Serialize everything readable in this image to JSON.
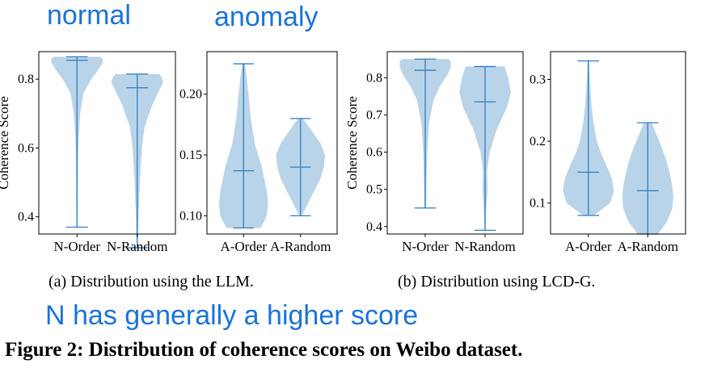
{
  "annotations": {
    "normal": "normal",
    "anomaly": "anomaly",
    "note": "N has generally a higher score"
  },
  "captions": {
    "a": "(a)  Distribution using the LLM.",
    "b": "(b)  Distribution using LCD-G."
  },
  "figure_caption": "Figure 2: Distribution of coherence scores on Weibo dataset.",
  "colors": {
    "violin_fill": "#b9d3e8",
    "violin_line": "#2f7fc1",
    "annotation": "#1a73d6"
  },
  "chart_data": [
    {
      "type": "violin",
      "ylabel": "Coherence Score",
      "ylim": [
        0.35,
        0.88
      ],
      "yticks": [
        0.4,
        0.6,
        0.8
      ],
      "tick_labels": [
        "0.4",
        "0.6",
        "0.8"
      ],
      "categories": [
        "N-Order",
        "N-Random"
      ],
      "series": [
        {
          "min": 0.37,
          "median": 0.855,
          "max": 0.865,
          "density": [
            [
              0.37,
              0.02
            ],
            [
              0.45,
              0.03
            ],
            [
              0.55,
              0.04
            ],
            [
              0.62,
              0.06
            ],
            [
              0.7,
              0.12
            ],
            [
              0.76,
              0.25
            ],
            [
              0.8,
              0.55
            ],
            [
              0.83,
              0.85
            ],
            [
              0.85,
              1.0
            ],
            [
              0.86,
              0.98
            ],
            [
              0.865,
              0.9
            ]
          ]
        },
        {
          "min": 0.31,
          "median": 0.775,
          "max": 0.815,
          "density": [
            [
              0.31,
              0.02
            ],
            [
              0.4,
              0.05
            ],
            [
              0.5,
              0.1
            ],
            [
              0.6,
              0.18
            ],
            [
              0.66,
              0.28
            ],
            [
              0.72,
              0.55
            ],
            [
              0.76,
              0.8
            ],
            [
              0.79,
              1.0
            ],
            [
              0.805,
              0.95
            ],
            [
              0.815,
              0.85
            ]
          ]
        }
      ]
    },
    {
      "type": "violin",
      "ylabel": "",
      "ylim": [
        0.085,
        0.235
      ],
      "yticks": [
        0.1,
        0.15,
        0.2
      ],
      "tick_labels": [
        "0.10",
        "0.15",
        "0.20"
      ],
      "categories": [
        "A-Order",
        "A-Random"
      ],
      "series": [
        {
          "min": 0.09,
          "median": 0.137,
          "max": 0.225,
          "density": [
            [
              0.09,
              0.7
            ],
            [
              0.1,
              0.95
            ],
            [
              0.11,
              1.0
            ],
            [
              0.12,
              0.95
            ],
            [
              0.13,
              0.85
            ],
            [
              0.14,
              0.75
            ],
            [
              0.15,
              0.6
            ],
            [
              0.16,
              0.45
            ],
            [
              0.18,
              0.3
            ],
            [
              0.2,
              0.2
            ],
            [
              0.215,
              0.12
            ],
            [
              0.225,
              0.05
            ]
          ]
        },
        {
          "min": 0.1,
          "median": 0.14,
          "max": 0.18,
          "density": [
            [
              0.1,
              0.05
            ],
            [
              0.11,
              0.3
            ],
            [
              0.12,
              0.55
            ],
            [
              0.13,
              0.8
            ],
            [
              0.14,
              0.95
            ],
            [
              0.15,
              1.0
            ],
            [
              0.16,
              0.8
            ],
            [
              0.17,
              0.45
            ],
            [
              0.18,
              0.1
            ]
          ]
        }
      ]
    },
    {
      "type": "violin",
      "ylabel": "Coherence Score",
      "ylim": [
        0.38,
        0.87
      ],
      "yticks": [
        0.4,
        0.5,
        0.6,
        0.7,
        0.8
      ],
      "tick_labels": [
        "0.4",
        "0.5",
        "0.6",
        "0.7",
        "0.8"
      ],
      "categories": [
        "N-Order",
        "N-Random"
      ],
      "series": [
        {
          "min": 0.45,
          "median": 0.82,
          "max": 0.85,
          "density": [
            [
              0.45,
              0.03
            ],
            [
              0.52,
              0.05
            ],
            [
              0.6,
              0.08
            ],
            [
              0.68,
              0.15
            ],
            [
              0.74,
              0.32
            ],
            [
              0.78,
              0.6
            ],
            [
              0.81,
              0.88
            ],
            [
              0.83,
              1.0
            ],
            [
              0.845,
              0.98
            ],
            [
              0.85,
              0.9
            ]
          ]
        },
        {
          "min": 0.39,
          "median": 0.735,
          "max": 0.83,
          "density": [
            [
              0.39,
              0.02
            ],
            [
              0.45,
              0.05
            ],
            [
              0.5,
              0.1
            ],
            [
              0.55,
              0.08
            ],
            [
              0.6,
              0.18
            ],
            [
              0.66,
              0.45
            ],
            [
              0.72,
              0.85
            ],
            [
              0.76,
              1.0
            ],
            [
              0.8,
              0.9
            ],
            [
              0.83,
              0.75
            ]
          ]
        }
      ]
    },
    {
      "type": "violin",
      "ylabel": "",
      "ylim": [
        0.05,
        0.345
      ],
      "yticks": [
        0.1,
        0.2,
        0.3
      ],
      "tick_labels": [
        "0.1",
        "0.2",
        "0.3"
      ],
      "categories": [
        "A-Order",
        "A-Random"
      ],
      "series": [
        {
          "min": 0.08,
          "median": 0.15,
          "max": 0.33,
          "density": [
            [
              0.08,
              0.2
            ],
            [
              0.1,
              0.85
            ],
            [
              0.12,
              1.0
            ],
            [
              0.14,
              0.92
            ],
            [
              0.16,
              0.72
            ],
            [
              0.18,
              0.5
            ],
            [
              0.2,
              0.33
            ],
            [
              0.23,
              0.2
            ],
            [
              0.26,
              0.12
            ],
            [
              0.3,
              0.06
            ],
            [
              0.33,
              0.03
            ]
          ]
        },
        {
          "min": 0.05,
          "median": 0.12,
          "max": 0.23,
          "density": [
            [
              0.05,
              0.4
            ],
            [
              0.07,
              0.75
            ],
            [
              0.09,
              0.95
            ],
            [
              0.11,
              1.0
            ],
            [
              0.13,
              0.95
            ],
            [
              0.15,
              0.85
            ],
            [
              0.17,
              0.72
            ],
            [
              0.19,
              0.55
            ],
            [
              0.21,
              0.35
            ],
            [
              0.23,
              0.15
            ]
          ]
        }
      ]
    }
  ]
}
